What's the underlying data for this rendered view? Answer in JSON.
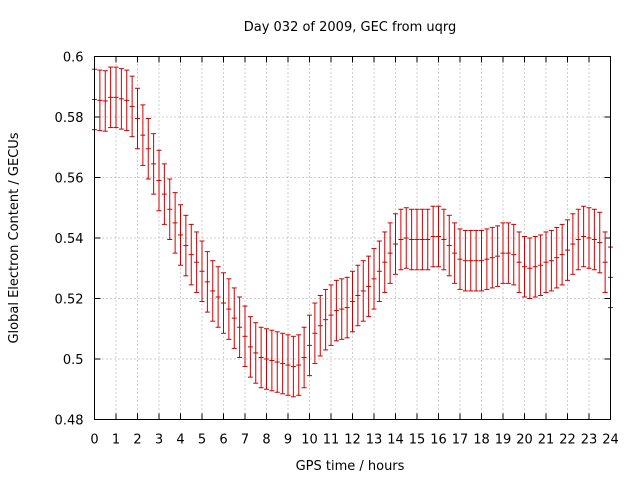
{
  "chart_data": {
    "type": "errorbar",
    "title": "Day 032 of 2009, GEC from uqrg",
    "xlabel": "GPS time / hours",
    "ylabel": "Global Electron Content / GECUs",
    "xlim": [
      0,
      24
    ],
    "ylim": [
      0.48,
      0.6
    ],
    "xticks": [
      "0",
      "1",
      "2",
      "3",
      "4",
      "5",
      "6",
      "7",
      "8",
      "9",
      "10",
      "11",
      "12",
      "13",
      "14",
      "15",
      "16",
      "17",
      "18",
      "19",
      "20",
      "21",
      "22",
      "23",
      "24"
    ],
    "yticks": [
      "0.48",
      "0.5",
      "0.52",
      "0.54",
      "0.56",
      "0.58",
      "0.6"
    ],
    "grid": true,
    "series_color": "#cc0000",
    "error": 0.01,
    "x": [
      0,
      0.25,
      0.5,
      0.75,
      1,
      1.25,
      1.5,
      1.75,
      2,
      2.25,
      2.5,
      2.75,
      3,
      3.25,
      3.5,
      3.75,
      4,
      4.25,
      4.5,
      4.75,
      5,
      5.25,
      5.5,
      5.75,
      6,
      6.25,
      6.5,
      6.75,
      7,
      7.25,
      7.5,
      7.75,
      8,
      8.25,
      8.5,
      8.75,
      9,
      9.25,
      9.5,
      9.75,
      10,
      10.25,
      10.5,
      10.75,
      11,
      11.25,
      11.5,
      11.75,
      12,
      12.25,
      12.5,
      12.75,
      13,
      13.25,
      13.5,
      13.75,
      14,
      14.25,
      14.5,
      14.75,
      15,
      15.25,
      15.5,
      15.75,
      16,
      16.25,
      16.5,
      16.75,
      17,
      17.25,
      17.5,
      17.75,
      18,
      18.25,
      18.5,
      18.75,
      19,
      19.25,
      19.5,
      19.75,
      20,
      20.25,
      20.5,
      20.75,
      21,
      21.25,
      21.5,
      21.75,
      22,
      22.25,
      22.5,
      22.75,
      23,
      23.25,
      23.5,
      23.75,
      24
    ],
    "y": [
      0.5858,
      0.5855,
      0.5853,
      0.5865,
      0.5865,
      0.586,
      0.5855,
      0.5835,
      0.5795,
      0.574,
      0.5695,
      0.5645,
      0.559,
      0.5545,
      0.5495,
      0.545,
      0.541,
      0.5375,
      0.5345,
      0.532,
      0.529,
      0.5255,
      0.5225,
      0.5205,
      0.5185,
      0.5165,
      0.5135,
      0.5105,
      0.5075,
      0.504,
      0.502,
      0.5005,
      0.5,
      0.4995,
      0.499,
      0.4985,
      0.498,
      0.4975,
      0.498,
      0.5005,
      0.5045,
      0.5085,
      0.511,
      0.513,
      0.5145,
      0.516,
      0.5165,
      0.517,
      0.519,
      0.521,
      0.5225,
      0.524,
      0.5265,
      0.529,
      0.532,
      0.535,
      0.538,
      0.5395,
      0.54,
      0.5395,
      0.5395,
      0.5395,
      0.5395,
      0.5405,
      0.5405,
      0.5395,
      0.5375,
      0.535,
      0.533,
      0.5325,
      0.5325,
      0.5325,
      0.5325,
      0.533,
      0.5335,
      0.534,
      0.535,
      0.535,
      0.5345,
      0.532,
      0.5305,
      0.53,
      0.5305,
      0.531,
      0.532,
      0.5325,
      0.5335,
      0.5345,
      0.536,
      0.538,
      0.5395,
      0.5405,
      0.54,
      0.5395,
      0.5385,
      0.532,
      0.527
    ]
  }
}
